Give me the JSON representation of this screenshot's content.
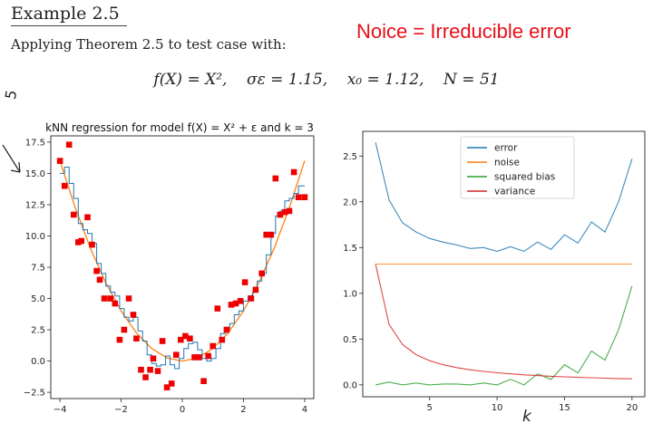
{
  "document": {
    "heading": "Example 2.5",
    "intro": "Applying Theorem 2.5 to test case with:",
    "formula": "f(X) = X²,    σε = 1.15,    x₀ = 1.12,    N = 51",
    "annotation": "Noice = Irreducible error",
    "handwriting": {
      "left_mark": "5",
      "k_mark": "k"
    }
  },
  "colors": {
    "blue": "#1f77b4",
    "orange": "#ff7f0e",
    "green": "#2ca02c",
    "red": "#d62728",
    "points": "#ee0000",
    "annotation": "#e8101a"
  },
  "chart_data": [
    {
      "type": "scatter",
      "title": "kNN regression for model f(X) = X² + ε and k = 3",
      "xlabel": "",
      "ylabel": "",
      "xlim": [
        -4.3,
        4.3
      ],
      "ylim": [
        -3.0,
        18.0
      ],
      "xticks": [
        -4,
        -2,
        0,
        2,
        4
      ],
      "yticks": [
        -2.5,
        0.0,
        2.5,
        5.0,
        7.5,
        10.0,
        12.5,
        15.0,
        17.5
      ],
      "xtick_labels": [
        "−4",
        "−2",
        "0",
        "2",
        "4"
      ],
      "ytick_labels": [
        "−2.5",
        "0.0",
        "2.5",
        "5.0",
        "7.5",
        "10.0",
        "12.5",
        "15.0",
        "17.5"
      ],
      "grid": false,
      "points": {
        "x": [
          -4.0,
          -3.85,
          -3.7,
          -3.55,
          -3.4,
          -3.3,
          -3.1,
          -2.95,
          -2.8,
          -2.7,
          -2.55,
          -2.35,
          -2.2,
          -2.05,
          -1.9,
          -1.75,
          -1.6,
          -1.5,
          -1.35,
          -1.2,
          -1.05,
          -0.95,
          -0.8,
          -0.65,
          -0.5,
          -0.35,
          -0.2,
          -0.05,
          0.1,
          0.25,
          0.4,
          0.55,
          0.7,
          0.85,
          1.0,
          1.15,
          1.3,
          1.45,
          1.6,
          1.75,
          1.9,
          2.05,
          2.25,
          2.4,
          2.6,
          2.75,
          2.9,
          3.05,
          3.2,
          3.35,
          3.5,
          3.65,
          3.8,
          4.0
        ],
        "y": [
          16.0,
          14.0,
          17.3,
          11.7,
          9.5,
          9.6,
          11.5,
          9.3,
          7.2,
          6.5,
          5.0,
          5.0,
          4.6,
          1.7,
          2.5,
          5.0,
          3.7,
          1.8,
          -0.7,
          -1.3,
          -0.7,
          0.2,
          -0.8,
          1.6,
          -2.1,
          -1.8,
          0.5,
          1.7,
          2.0,
          1.8,
          0.3,
          0.3,
          -1.6,
          0.4,
          1.2,
          4.2,
          1.7,
          2.5,
          4.5,
          4.6,
          4.8,
          6.3,
          5.0,
          5.7,
          7.0,
          10.1,
          10.1,
          14.6,
          11.7,
          11.9,
          12.0,
          15.1,
          13.1,
          13.1
        ]
      },
      "series": [
        {
          "type": "line",
          "x": [
            -4.0,
            -3.5,
            -3.0,
            -2.5,
            -2.0,
            -1.5,
            -1.0,
            -0.5,
            0.0,
            0.5,
            1.0,
            1.5,
            2.0,
            2.5,
            3.0,
            3.5,
            4.0
          ],
          "y": [
            16.0,
            12.25,
            9.0,
            6.25,
            4.0,
            2.25,
            1.0,
            0.25,
            0.0,
            0.25,
            1.0,
            2.25,
            4.0,
            6.25,
            9.0,
            12.25,
            16.0
          ]
        },
        {
          "type": "step",
          "x": [
            -4.0,
            -3.85,
            -3.7,
            -3.55,
            -3.4,
            -3.25,
            -3.1,
            -2.95,
            -2.8,
            -2.65,
            -2.5,
            -2.35,
            -2.2,
            -2.05,
            -1.9,
            -1.75,
            -1.6,
            -1.45,
            -1.3,
            -1.15,
            -1.0,
            -0.85,
            -0.7,
            -0.55,
            -0.4,
            -0.25,
            -0.1,
            0.05,
            0.2,
            0.35,
            0.5,
            0.65,
            0.8,
            0.95,
            1.1,
            1.25,
            1.4,
            1.55,
            1.7,
            1.85,
            2.0,
            2.15,
            2.3,
            2.45,
            2.6,
            2.75,
            2.9,
            3.05,
            3.2,
            3.35,
            3.5,
            3.65,
            3.8,
            4.0
          ],
          "y": [
            15.0,
            15.5,
            14.2,
            13.0,
            11.0,
            10.5,
            10.2,
            9.4,
            7.8,
            7.0,
            6.0,
            5.5,
            5.2,
            4.2,
            3.5,
            3.2,
            3.5,
            2.4,
            1.6,
            0.5,
            -0.2,
            -0.4,
            -0.3,
            0.4,
            -0.3,
            -0.6,
            0.2,
            1.0,
            1.4,
            1.5,
            0.9,
            0.2,
            0.0,
            0.2,
            1.0,
            2.2,
            2.6,
            3.0,
            3.7,
            4.0,
            4.8,
            5.2,
            5.5,
            6.4,
            7.0,
            8.5,
            10.2,
            11.6,
            12.0,
            12.8,
            13.0,
            13.4,
            14.0,
            14.0
          ]
        }
      ]
    },
    {
      "type": "line",
      "title": "",
      "xlabel": "",
      "ylabel": "",
      "xlim": [
        0.05,
        20.95
      ],
      "ylim": [
        -0.13,
        2.77
      ],
      "xticks": [
        5,
        10,
        15,
        20
      ],
      "yticks": [
        0.0,
        0.5,
        1.0,
        1.5,
        2.0,
        2.5
      ],
      "xtick_labels": [
        "5",
        "10",
        "15",
        "20"
      ],
      "ytick_labels": [
        "0.0",
        "0.5",
        "1.0",
        "1.5",
        "2.0",
        "2.5"
      ],
      "grid": false,
      "legend": "top-center",
      "x": [
        1,
        2,
        3,
        4,
        5,
        6,
        7,
        8,
        9,
        10,
        11,
        12,
        13,
        14,
        15,
        16,
        17,
        18,
        19,
        20
      ],
      "series": [
        {
          "name": "error",
          "values": [
            2.65,
            2.02,
            1.77,
            1.67,
            1.6,
            1.56,
            1.53,
            1.49,
            1.5,
            1.46,
            1.51,
            1.46,
            1.56,
            1.48,
            1.64,
            1.55,
            1.78,
            1.67,
            2.0,
            2.47
          ]
        },
        {
          "name": "noise",
          "values": [
            1.32,
            1.32,
            1.32,
            1.32,
            1.32,
            1.32,
            1.32,
            1.32,
            1.32,
            1.32,
            1.32,
            1.32,
            1.32,
            1.32,
            1.32,
            1.32,
            1.32,
            1.32,
            1.32,
            1.32
          ]
        },
        {
          "name": "squared bias",
          "values": [
            0.0,
            0.03,
            0.0,
            0.02,
            0.0,
            0.01,
            0.01,
            0.0,
            0.02,
            0.0,
            0.06,
            0.0,
            0.12,
            0.06,
            0.22,
            0.13,
            0.37,
            0.27,
            0.6,
            1.08
          ]
        },
        {
          "name": "variance",
          "values": [
            1.32,
            0.66,
            0.44,
            0.33,
            0.264,
            0.22,
            0.189,
            0.165,
            0.147,
            0.132,
            0.12,
            0.11,
            0.102,
            0.094,
            0.088,
            0.083,
            0.078,
            0.073,
            0.069,
            0.066
          ]
        }
      ]
    }
  ]
}
